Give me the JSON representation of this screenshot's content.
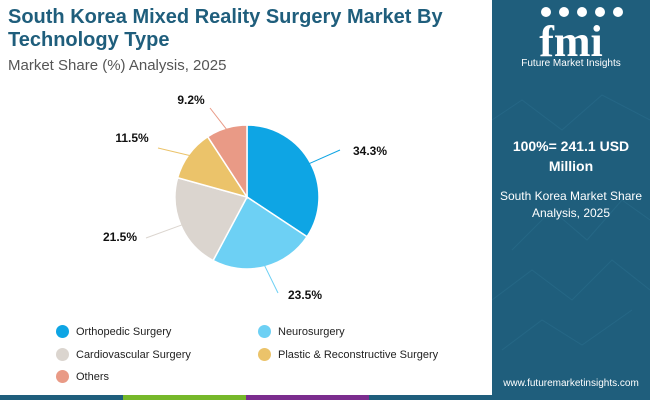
{
  "header": {
    "title": "South Korea Mixed Reality Surgery Market By Technology Type",
    "subtitle": "Market Share (%) Analysis, 2025"
  },
  "brand": {
    "logo_text": "fmi",
    "caption": "Future Market Insights",
    "url": "www.futuremarketinsights.com"
  },
  "summary": {
    "total": "100%= 241.1 USD Million",
    "description": "South Korea Market Share Analysis, 2025"
  },
  "colors": {
    "title": "#1f5e7c",
    "panel": "#1f5e7c",
    "bottom_bar": [
      "#1f5e7c",
      "#76b82a",
      "#7b2d8e",
      "#1f5e7c"
    ]
  },
  "chart_data": {
    "type": "pie",
    "title": "South Korea Mixed Reality Surgery Market By Technology Type",
    "start_angle_deg": 0,
    "direction": "clockwise",
    "legend_position": "bottom",
    "slices": [
      {
        "label": "Orthopedic Surgery",
        "value": 34.3,
        "display": "34.3%",
        "color": "#0ea5e4"
      },
      {
        "label": "Neurosurgery",
        "value": 23.5,
        "display": "23.5%",
        "color": "#6dd0f4"
      },
      {
        "label": "Cardiovascular Surgery",
        "value": 21.5,
        "display": "21.5%",
        "color": "#dbd5cf"
      },
      {
        "label": "Plastic & Reconstructive Surgery",
        "value": 11.5,
        "display": "11.5%",
        "color": "#ebc36a"
      },
      {
        "label": "Others",
        "value": 9.2,
        "display": "9.2%",
        "color": "#e99a86"
      }
    ]
  }
}
